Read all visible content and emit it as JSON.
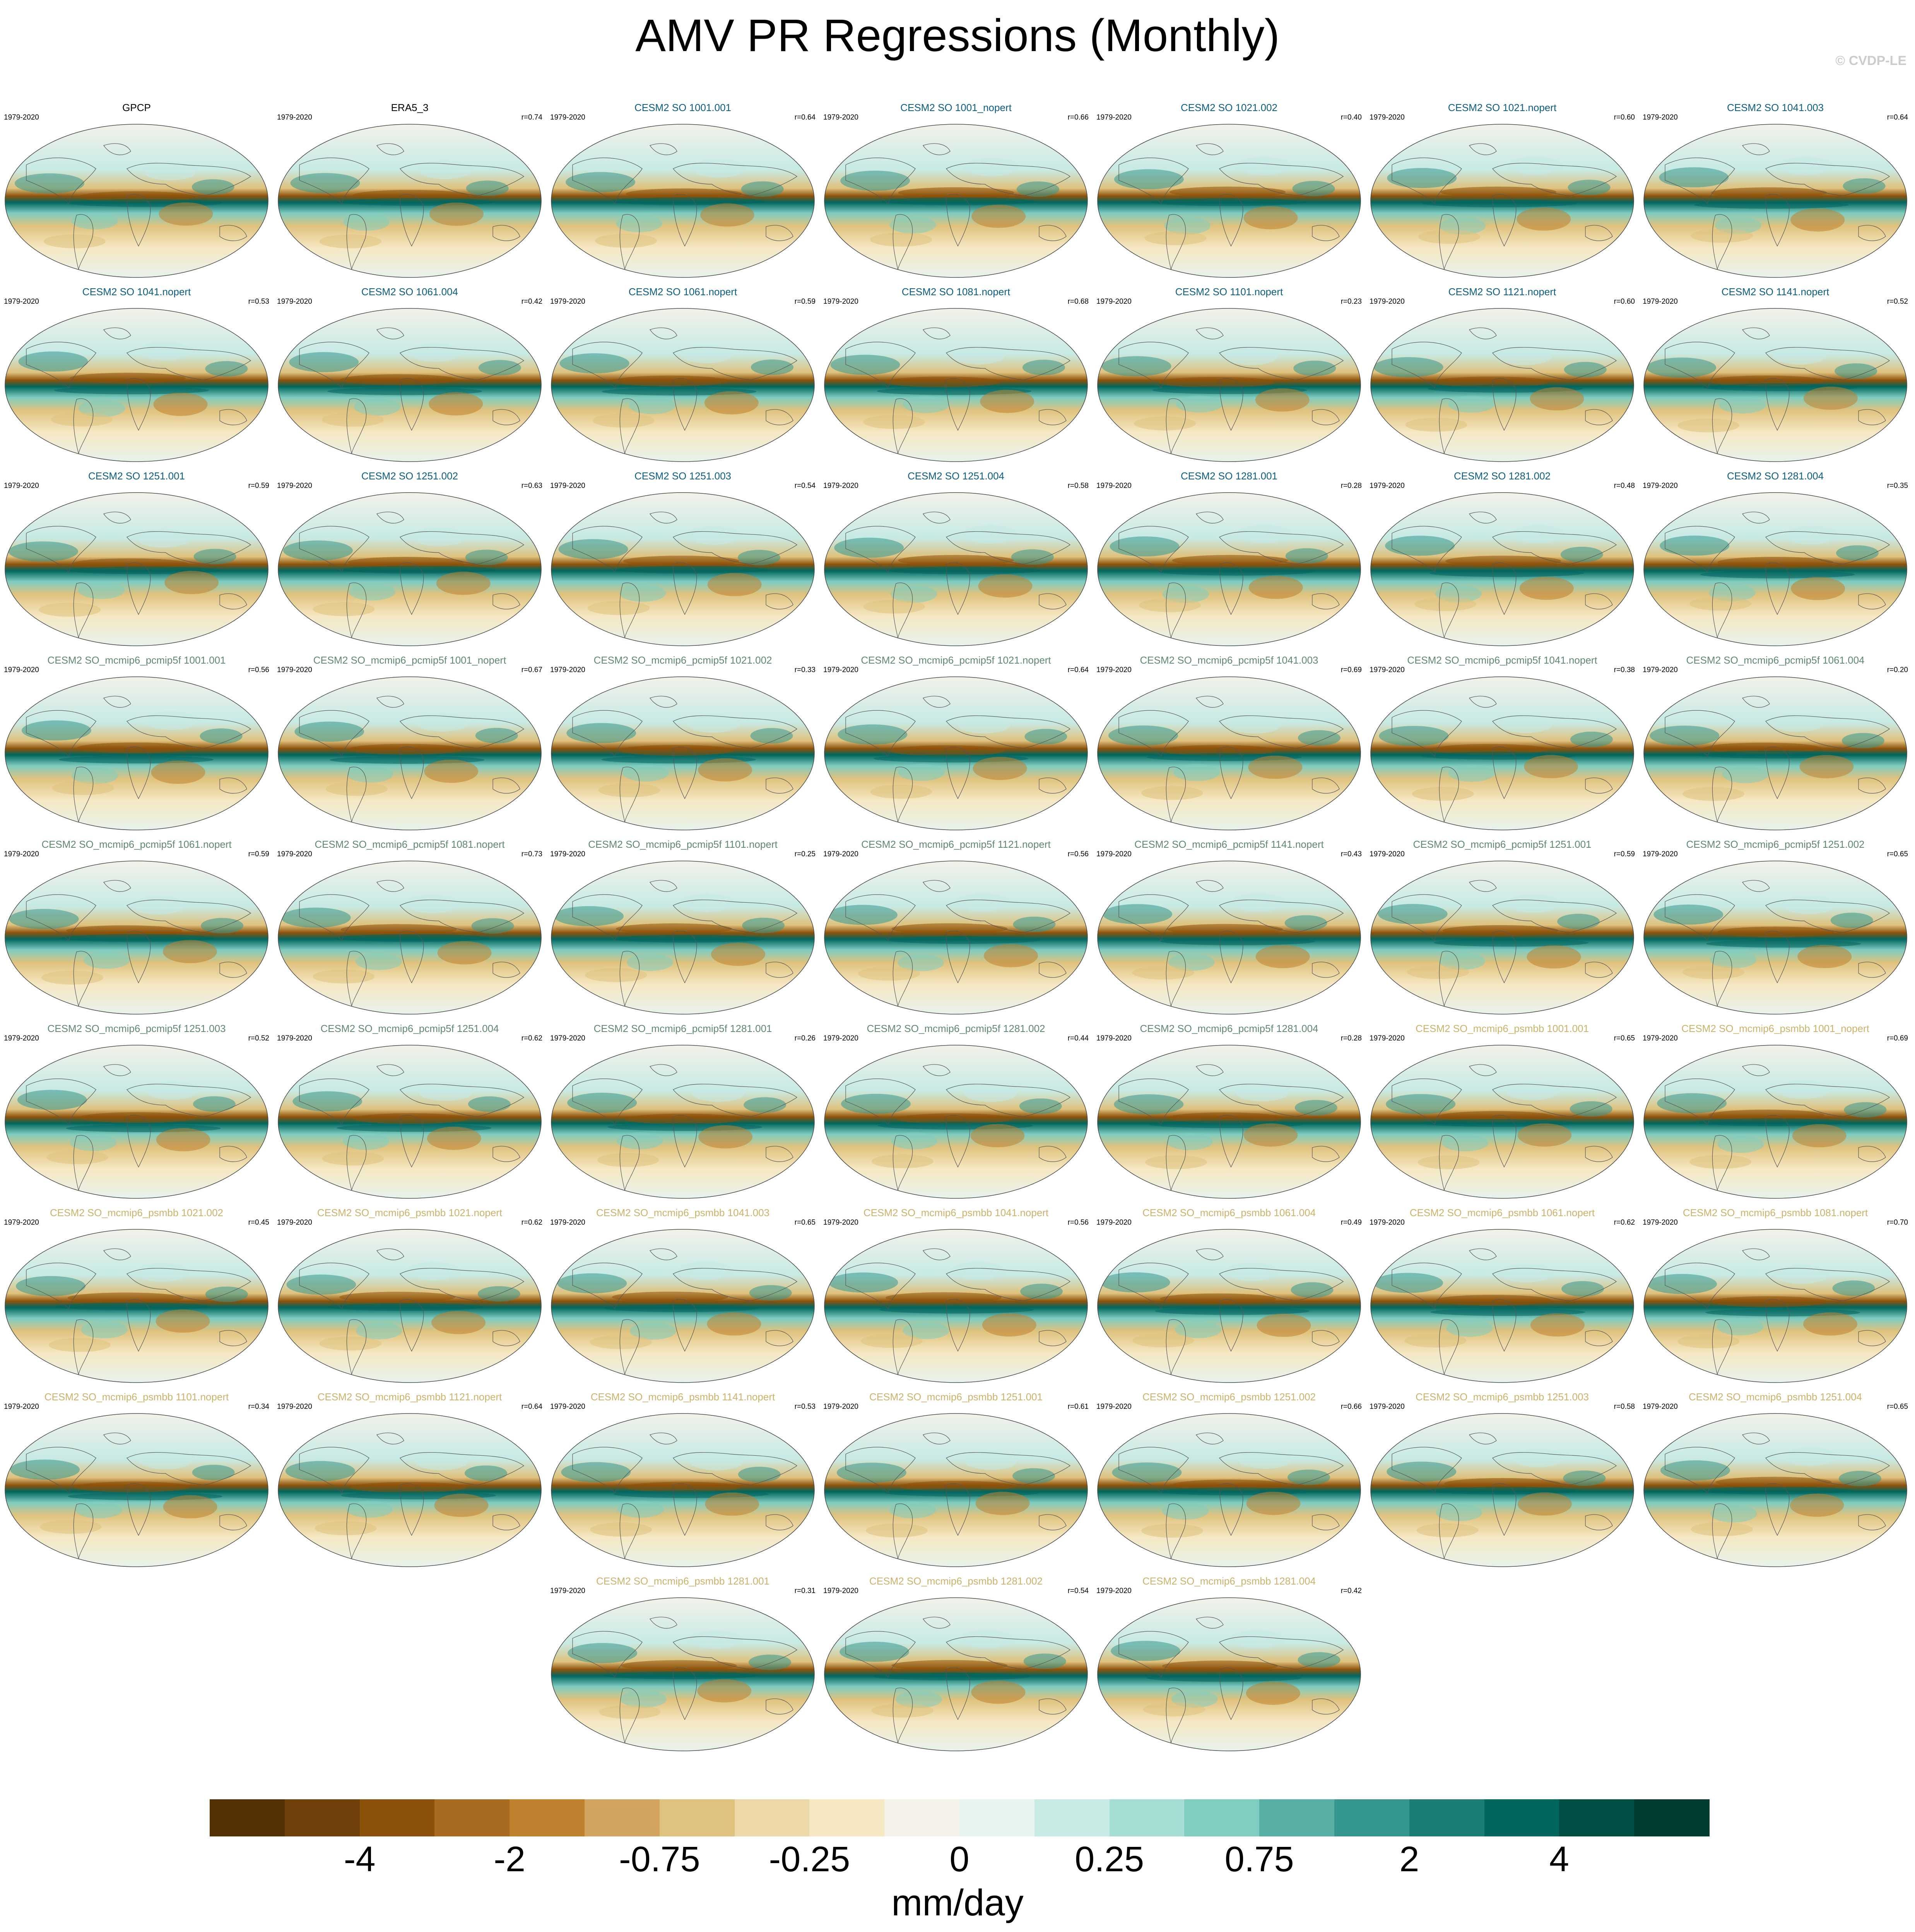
{
  "title": "AMV PR Regressions (Monthly)",
  "credit": "© CVDP-LE",
  "colors": {
    "obs": "#000000",
    "cesm2_so": "#0b5f86",
    "pcmip5f": "#5f8a6f",
    "psmbb": "#cfb269",
    "land": "#ffffff",
    "coast": "#555555"
  },
  "panels": [
    {
      "name": "GPCP",
      "years": "1979-2020",
      "r": "",
      "group": "obs"
    },
    {
      "name": "ERA5_3",
      "years": "1979-2020",
      "r": "r=0.74",
      "group": "obs"
    },
    {
      "name": "CESM2 SO 1001.001",
      "years": "1979-2020",
      "r": "r=0.64",
      "group": "cesm2_so"
    },
    {
      "name": "CESM2 SO 1001_nopert",
      "years": "1979-2020",
      "r": "r=0.66",
      "group": "cesm2_so"
    },
    {
      "name": "CESM2 SO 1021.002",
      "years": "1979-2020",
      "r": "r=0.40",
      "group": "cesm2_so"
    },
    {
      "name": "CESM2 SO 1021.nopert",
      "years": "1979-2020",
      "r": "r=0.60",
      "group": "cesm2_so"
    },
    {
      "name": "CESM2 SO 1041.003",
      "years": "1979-2020",
      "r": "r=0.64",
      "group": "cesm2_so"
    },
    {
      "name": "CESM2 SO 1041.nopert",
      "years": "1979-2020",
      "r": "r=0.53",
      "group": "cesm2_so"
    },
    {
      "name": "CESM2 SO 1061.004",
      "years": "1979-2020",
      "r": "r=0.42",
      "group": "cesm2_so"
    },
    {
      "name": "CESM2 SO 1061.nopert",
      "years": "1979-2020",
      "r": "r=0.59",
      "group": "cesm2_so"
    },
    {
      "name": "CESM2 SO 1081.nopert",
      "years": "1979-2020",
      "r": "r=0.68",
      "group": "cesm2_so"
    },
    {
      "name": "CESM2 SO 1101.nopert",
      "years": "1979-2020",
      "r": "r=0.23",
      "group": "cesm2_so"
    },
    {
      "name": "CESM2 SO 1121.nopert",
      "years": "1979-2020",
      "r": "r=0.60",
      "group": "cesm2_so"
    },
    {
      "name": "CESM2 SO 1141.nopert",
      "years": "1979-2020",
      "r": "r=0.52",
      "group": "cesm2_so"
    },
    {
      "name": "CESM2 SO 1251.001",
      "years": "1979-2020",
      "r": "r=0.59",
      "group": "cesm2_so"
    },
    {
      "name": "CESM2 SO 1251.002",
      "years": "1979-2020",
      "r": "r=0.63",
      "group": "cesm2_so"
    },
    {
      "name": "CESM2 SO 1251.003",
      "years": "1979-2020",
      "r": "r=0.54",
      "group": "cesm2_so"
    },
    {
      "name": "CESM2 SO 1251.004",
      "years": "1979-2020",
      "r": "r=0.58",
      "group": "cesm2_so"
    },
    {
      "name": "CESM2 SO 1281.001",
      "years": "1979-2020",
      "r": "r=0.28",
      "group": "cesm2_so"
    },
    {
      "name": "CESM2 SO 1281.002",
      "years": "1979-2020",
      "r": "r=0.48",
      "group": "cesm2_so"
    },
    {
      "name": "CESM2 SO 1281.004",
      "years": "1979-2020",
      "r": "r=0.35",
      "group": "cesm2_so"
    },
    {
      "name": "CESM2 SO_mcmip6_pcmip5f 1001.001",
      "years": "1979-2020",
      "r": "r=0.56",
      "group": "pcmip5f"
    },
    {
      "name": "CESM2 SO_mcmip6_pcmip5f 1001_nopert",
      "years": "1979-2020",
      "r": "r=0.67",
      "group": "pcmip5f"
    },
    {
      "name": "CESM2 SO_mcmip6_pcmip5f 1021.002",
      "years": "1979-2020",
      "r": "r=0.33",
      "group": "pcmip5f"
    },
    {
      "name": "CESM2 SO_mcmip6_pcmip5f 1021.nopert",
      "years": "1979-2020",
      "r": "r=0.64",
      "group": "pcmip5f"
    },
    {
      "name": "CESM2 SO_mcmip6_pcmip5f 1041.003",
      "years": "1979-2020",
      "r": "r=0.69",
      "group": "pcmip5f"
    },
    {
      "name": "CESM2 SO_mcmip6_pcmip5f 1041.nopert",
      "years": "1979-2020",
      "r": "r=0.38",
      "group": "pcmip5f"
    },
    {
      "name": "CESM2 SO_mcmip6_pcmip5f 1061.004",
      "years": "1979-2020",
      "r": "r=0.20",
      "group": "pcmip5f"
    },
    {
      "name": "CESM2 SO_mcmip6_pcmip5f 1061.nopert",
      "years": "1979-2020",
      "r": "r=0.59",
      "group": "pcmip5f"
    },
    {
      "name": "CESM2 SO_mcmip6_pcmip5f 1081.nopert",
      "years": "1979-2020",
      "r": "r=0.73",
      "group": "pcmip5f"
    },
    {
      "name": "CESM2 SO_mcmip6_pcmip5f 1101.nopert",
      "years": "1979-2020",
      "r": "r=0.25",
      "group": "pcmip5f"
    },
    {
      "name": "CESM2 SO_mcmip6_pcmip5f 1121.nopert",
      "years": "1979-2020",
      "r": "r=0.56",
      "group": "pcmip5f"
    },
    {
      "name": "CESM2 SO_mcmip6_pcmip5f 1141.nopert",
      "years": "1979-2020",
      "r": "r=0.43",
      "group": "pcmip5f"
    },
    {
      "name": "CESM2 SO_mcmip6_pcmip5f 1251.001",
      "years": "1979-2020",
      "r": "r=0.59",
      "group": "pcmip5f"
    },
    {
      "name": "CESM2 SO_mcmip6_pcmip5f 1251.002",
      "years": "1979-2020",
      "r": "r=0.65",
      "group": "pcmip5f"
    },
    {
      "name": "CESM2 SO_mcmip6_pcmip5f 1251.003",
      "years": "1979-2020",
      "r": "r=0.52",
      "group": "pcmip5f"
    },
    {
      "name": "CESM2 SO_mcmip6_pcmip5f 1251.004",
      "years": "1979-2020",
      "r": "r=0.62",
      "group": "pcmip5f"
    },
    {
      "name": "CESM2 SO_mcmip6_pcmip5f 1281.001",
      "years": "1979-2020",
      "r": "r=0.26",
      "group": "pcmip5f"
    },
    {
      "name": "CESM2 SO_mcmip6_pcmip5f 1281.002",
      "years": "1979-2020",
      "r": "r=0.44",
      "group": "pcmip5f"
    },
    {
      "name": "CESM2 SO_mcmip6_pcmip5f 1281.004",
      "years": "1979-2020",
      "r": "r=0.28",
      "group": "pcmip5f"
    },
    {
      "name": "CESM2 SO_mcmip6_psmbb 1001.001",
      "years": "1979-2020",
      "r": "r=0.65",
      "group": "psmbb"
    },
    {
      "name": "CESM2 SO_mcmip6_psmbb 1001_nopert",
      "years": "1979-2020",
      "r": "r=0.69",
      "group": "psmbb"
    },
    {
      "name": "CESM2 SO_mcmip6_psmbb 1021.002",
      "years": "1979-2020",
      "r": "r=0.45",
      "group": "psmbb"
    },
    {
      "name": "CESM2 SO_mcmip6_psmbb 1021.nopert",
      "years": "1979-2020",
      "r": "r=0.62",
      "group": "psmbb"
    },
    {
      "name": "CESM2 SO_mcmip6_psmbb 1041.003",
      "years": "1979-2020",
      "r": "r=0.65",
      "group": "psmbb"
    },
    {
      "name": "CESM2 SO_mcmip6_psmbb 1041.nopert",
      "years": "1979-2020",
      "r": "r=0.56",
      "group": "psmbb"
    },
    {
      "name": "CESM2 SO_mcmip6_psmbb 1061.004",
      "years": "1979-2020",
      "r": "r=0.49",
      "group": "psmbb"
    },
    {
      "name": "CESM2 SO_mcmip6_psmbb 1061.nopert",
      "years": "1979-2020",
      "r": "r=0.62",
      "group": "psmbb"
    },
    {
      "name": "CESM2 SO_mcmip6_psmbb 1081.nopert",
      "years": "1979-2020",
      "r": "r=0.70",
      "group": "psmbb"
    },
    {
      "name": "CESM2 SO_mcmip6_psmbb 1101.nopert",
      "years": "1979-2020",
      "r": "r=0.34",
      "group": "psmbb"
    },
    {
      "name": "CESM2 SO_mcmip6_psmbb 1121.nopert",
      "years": "1979-2020",
      "r": "r=0.64",
      "group": "psmbb"
    },
    {
      "name": "CESM2 SO_mcmip6_psmbb 1141.nopert",
      "years": "1979-2020",
      "r": "r=0.53",
      "group": "psmbb"
    },
    {
      "name": "CESM2 SO_mcmip6_psmbb 1251.001",
      "years": "1979-2020",
      "r": "r=0.61",
      "group": "psmbb"
    },
    {
      "name": "CESM2 SO_mcmip6_psmbb 1251.002",
      "years": "1979-2020",
      "r": "r=0.66",
      "group": "psmbb"
    },
    {
      "name": "CESM2 SO_mcmip6_psmbb 1251.003",
      "years": "1979-2020",
      "r": "r=0.58",
      "group": "psmbb"
    },
    {
      "name": "CESM2 SO_mcmip6_psmbb 1251.004",
      "years": "1979-2020",
      "r": "r=0.65",
      "group": "psmbb"
    },
    {
      "name": "CESM2 SO_mcmip6_psmbb 1281.001",
      "years": "1979-2020",
      "r": "r=0.31",
      "group": "psmbb"
    },
    {
      "name": "CESM2 SO_mcmip6_psmbb 1281.002",
      "years": "1979-2020",
      "r": "r=0.54",
      "group": "psmbb"
    },
    {
      "name": "CESM2 SO_mcmip6_psmbb 1281.004",
      "years": "1979-2020",
      "r": "r=0.42",
      "group": "psmbb"
    }
  ],
  "colorbar": {
    "colors": [
      "#543005",
      "#70400a",
      "#8c510a",
      "#a86b22",
      "#bf812d",
      "#d1a55f",
      "#dfc27d",
      "#ecd8a8",
      "#f6e8c3",
      "#f5f2ea",
      "#e6f3ef",
      "#c7eae5",
      "#a6ddd5",
      "#80cdc1",
      "#58b0a5",
      "#35978f",
      "#1b7d74",
      "#01665e",
      "#004f44",
      "#003c30"
    ],
    "ticks": [
      {
        "label": "-4",
        "index": 2
      },
      {
        "label": "-2",
        "index": 4
      },
      {
        "label": "-0.75",
        "index": 6
      },
      {
        "label": "-0.25",
        "index": 8
      },
      {
        "label": "0",
        "index": 10
      },
      {
        "label": "0.25",
        "index": 12
      },
      {
        "label": "0.75",
        "index": 14
      },
      {
        "label": "2",
        "index": 16
      },
      {
        "label": "4",
        "index": 18
      }
    ],
    "units": "mm/day"
  }
}
